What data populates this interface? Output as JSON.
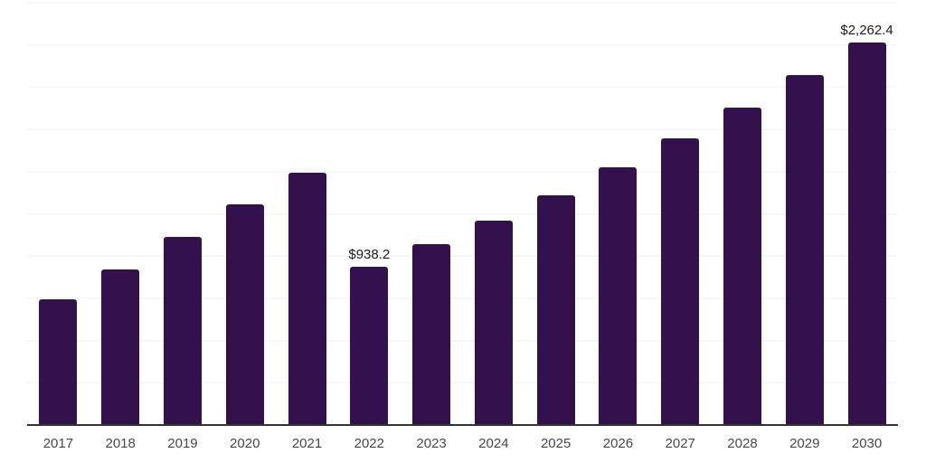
{
  "chart_data": {
    "type": "bar",
    "title": "",
    "xlabel": "",
    "ylabel": "",
    "categories": [
      "2017",
      "2018",
      "2019",
      "2020",
      "2021",
      "2022",
      "2023",
      "2024",
      "2025",
      "2026",
      "2027",
      "2028",
      "2029",
      "2030"
    ],
    "values": [
      744,
      922,
      1111,
      1305,
      1493,
      938.2,
      1070,
      1209,
      1359,
      1526,
      1698,
      1878,
      2072,
      2262.4
    ],
    "data_labels": {
      "2022": "$938.2",
      "2030": "$2,262.4"
    },
    "ylim": [
      0,
      2500
    ],
    "ytick_interval": 250,
    "y_tick_labels_shown": false,
    "grid": "horizontal",
    "legend": "none",
    "bar_color": "#32114D",
    "axis_color": "#333333",
    "gridline_color": "#f2f2f2",
    "tick_label_color": "#474747",
    "data_label_color": "#1a1a1a",
    "background_color": "#ffffff"
  }
}
